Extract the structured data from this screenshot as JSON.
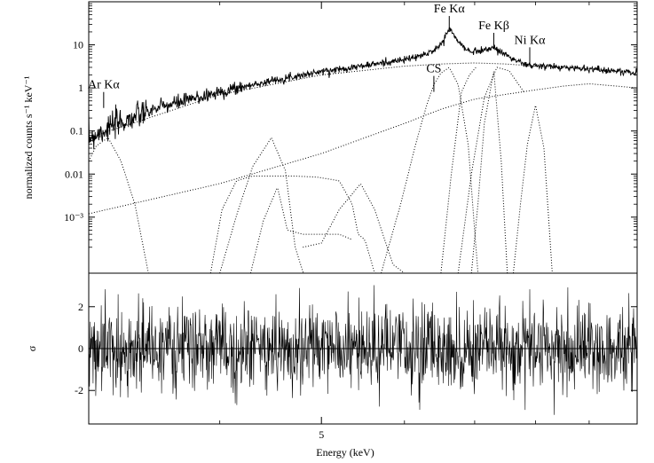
{
  "chart_data": [
    {
      "type": "line",
      "panel": "top",
      "title": "",
      "xlabel": "",
      "ylabel": "normalized counts s⁻¹ keV⁻¹",
      "yscale": "log",
      "xscale": "log",
      "xlim": [
        3.0,
        10.0
      ],
      "ylim": [
        5e-05,
        100
      ],
      "ytick_values": [
        0.001,
        0.01,
        0.1,
        1,
        10
      ],
      "ytick_labels": [
        "10⁻³",
        "0.01",
        "0.1",
        "1",
        "10"
      ],
      "annotations": [
        {
          "label": "Ar Kα",
          "energy": 3.1,
          "level": 0.55
        },
        {
          "label": "CS",
          "energy": 6.4,
          "level": 1.3
        },
        {
          "label": "Fe Kα",
          "energy": 6.62,
          "level": 32
        },
        {
          "label": "Fe Kβ",
          "energy": 7.3,
          "level": 13
        },
        {
          "label": "Ni Kα",
          "energy": 7.9,
          "level": 6
        }
      ],
      "series": [
        {
          "name": "data",
          "style": "solid",
          "x": [
            3.0,
            3.2,
            3.5,
            4.0,
            4.5,
            5.0,
            5.5,
            6.0,
            6.3,
            6.5,
            6.62,
            6.75,
            6.9,
            7.1,
            7.3,
            7.5,
            7.7,
            7.9,
            8.5,
            9.0,
            9.5,
            10.0
          ],
          "y": [
            0.07,
            0.15,
            0.35,
            0.8,
            1.5,
            2.4,
            3.3,
            4.5,
            6.0,
            10.0,
            24.0,
            12.0,
            7.0,
            7.5,
            8.5,
            6.0,
            4.0,
            3.3,
            3.0,
            2.8,
            2.5,
            2.2
          ]
        },
        {
          "name": "continuum-1",
          "style": "dotted",
          "x": [
            3.0,
            4.0,
            5.0,
            6.0,
            6.5,
            7.0,
            7.5,
            8.0,
            9.0,
            10.0
          ],
          "y": [
            0.07,
            0.7,
            2.0,
            3.2,
            3.6,
            3.8,
            3.6,
            3.2,
            2.8,
            2.3
          ]
        },
        {
          "name": "continuum-2",
          "style": "dotted",
          "x": [
            3.0,
            4.0,
            5.0,
            6.0,
            6.5,
            7.0,
            8.0,
            8.5,
            9.0,
            10.0
          ],
          "y": [
            0.0012,
            0.006,
            0.03,
            0.15,
            0.32,
            0.55,
            0.9,
            1.1,
            1.25,
            1.0
          ]
        },
        {
          "name": "line-Ar-K-alpha",
          "style": "dotted",
          "x": [
            3.0,
            3.05,
            3.13,
            3.22,
            3.32,
            3.42
          ],
          "y": [
            0.02,
            0.045,
            0.07,
            0.02,
            0.002,
            5e-05
          ]
        },
        {
          "name": "line-Ca",
          "style": "dotted",
          "x": [
            4.0,
            4.15,
            4.3,
            4.48,
            4.62,
            4.72,
            4.82,
            4.9
          ],
          "y": [
            5e-05,
            0.0011,
            0.015,
            0.07,
            0.012,
            0.0002,
            4e-05,
            3e-05
          ]
        },
        {
          "name": "line-Cr-plateau",
          "style": "dotted",
          "x": [
            3.92,
            4.02,
            4.15,
            4.3,
            4.48,
            4.7,
            4.95,
            5.2,
            5.35,
            5.42,
            5.5,
            5.62,
            5.7
          ],
          "y": [
            5e-05,
            0.0015,
            0.007,
            0.009,
            0.009,
            0.009,
            0.0085,
            0.007,
            0.002,
            0.0004,
            0.0003,
            5e-05,
            3e-05
          ]
        },
        {
          "name": "line-mid",
          "style": "dotted",
          "x": [
            4.28,
            4.4,
            4.54,
            4.64,
            4.8,
            5.0,
            5.2,
            5.35
          ],
          "y": [
            5e-05,
            0.0008,
            0.005,
            0.0005,
            0.0004,
            0.0004,
            0.0004,
            0.0003
          ]
        },
        {
          "name": "line-Mn",
          "style": "dotted",
          "x": [
            4.8,
            5.0,
            5.2,
            5.45,
            5.62,
            5.85,
            6.0
          ],
          "y": [
            0.0002,
            0.00025,
            0.0015,
            0.006,
            0.0015,
            8e-05,
            5e-05
          ]
        },
        {
          "name": "line-Fe-K-alpha",
          "style": "dotted",
          "x": [
            5.7,
            5.95,
            6.15,
            6.3,
            6.4,
            6.5,
            6.62,
            6.75,
            6.9,
            7.05
          ],
          "y": [
            5e-05,
            0.002,
            0.05,
            0.4,
            1.2,
            2.2,
            3.0,
            1.2,
            0.05,
            5e-05
          ]
        },
        {
          "name": "line-Fe-K-beta",
          "style": "dotted",
          "x": [
            6.95,
            7.05,
            7.15,
            7.3,
            7.42,
            7.52
          ],
          "y": [
            5e-05,
            0.002,
            0.15,
            2.5,
            0.02,
            5e-05
          ]
        },
        {
          "name": "line-Ni-K-alpha",
          "style": "dotted",
          "x": [
            7.62,
            7.74,
            7.86,
            8.0,
            8.15,
            8.3
          ],
          "y": [
            5e-05,
            0.002,
            0.05,
            0.4,
            0.04,
            5e-05
          ]
        },
        {
          "name": "line-Fe-shoulder",
          "style": "dotted",
          "x": [
            6.5,
            6.65,
            6.8,
            6.92,
            7.02
          ],
          "y": [
            5e-05,
            0.01,
            0.8,
            2.0,
            3.0
          ]
        },
        {
          "name": "line-Fe-K-alpha-broad",
          "style": "dotted",
          "x": [
            6.75,
            6.95,
            7.15,
            7.35,
            7.55,
            7.8
          ],
          "y": [
            5e-05,
            0.01,
            0.6,
            3.0,
            2.5,
            0.8
          ]
        }
      ]
    },
    {
      "type": "line",
      "panel": "bottom",
      "title": "",
      "xlabel": "Energy (keV)",
      "ylabel": "σ",
      "xscale": "log",
      "xlim": [
        3.0,
        10.0
      ],
      "ylim": [
        -3.6,
        3.6
      ],
      "ytick_values": [
        -2,
        0,
        2
      ],
      "ytick_labels": [
        "-2",
        "0",
        "2"
      ],
      "xtick_values": [
        5
      ],
      "xtick_labels": [
        "5"
      ],
      "zero_line": 0,
      "residual_scatter_sigma": 1.0,
      "residual_point_count": 1400
    }
  ]
}
